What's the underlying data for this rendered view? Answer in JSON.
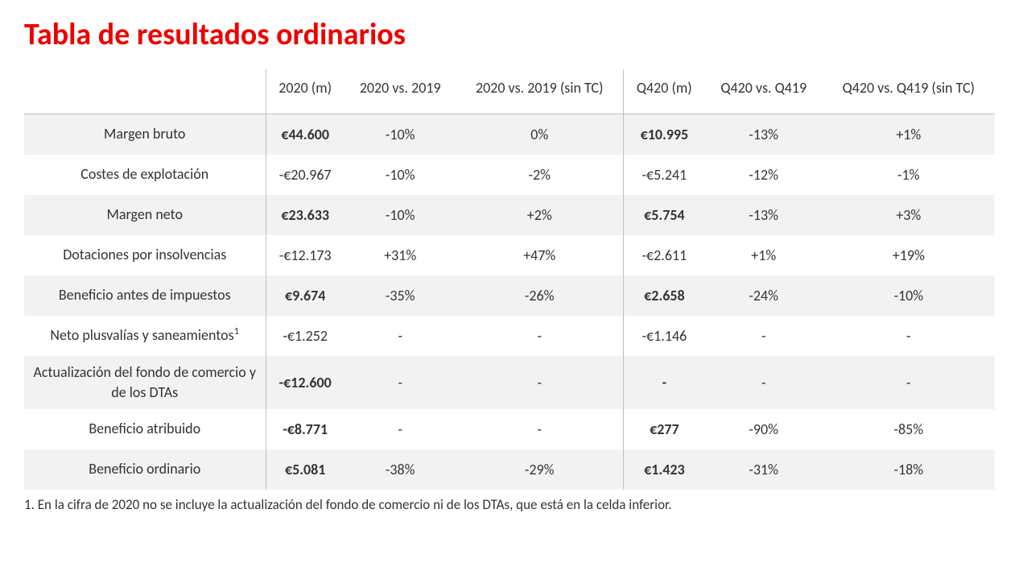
{
  "title": "Tabla de resultados ordinarios",
  "columns": {
    "c0": "2020 (m)",
    "c1": "2020 vs. 2019",
    "c2": "2020 vs. 2019 (sin TC)",
    "c3": "Q420 (m)",
    "c4": "Q420 vs. Q419",
    "c5": "Q420 vs. Q419 (sin TC)"
  },
  "rows": [
    {
      "label": "Margen bruto",
      "bold": true,
      "v": [
        "€44.600",
        "-10%",
        "0%",
        "€10.995",
        "-13%",
        "+1%"
      ]
    },
    {
      "label": "Costes de explotación",
      "bold": false,
      "v": [
        "-€20.967",
        "-10%",
        "-2%",
        "-€5.241",
        "-12%",
        "-1%"
      ]
    },
    {
      "label": "Margen neto",
      "bold": true,
      "v": [
        "€23.633",
        "-10%",
        "+2%",
        "€5.754",
        "-13%",
        "+3%"
      ]
    },
    {
      "label": "Dotaciones por insolvencias",
      "bold": false,
      "v": [
        "-€12.173",
        "+31%",
        "+47%",
        "-€2.611",
        "+1%",
        "+19%"
      ]
    },
    {
      "label": "Beneficio antes de impuestos",
      "bold": true,
      "v": [
        "€9.674",
        "-35%",
        "-26%",
        "€2.658",
        "-24%",
        "-10%"
      ]
    },
    {
      "label": "Neto plusvalías y saneamientos",
      "sup": "1",
      "bold": false,
      "v": [
        "-€1.252",
        "-",
        "-",
        "-€1.146",
        "-",
        "-"
      ]
    },
    {
      "label": "Actualización del fondo de comercio y de los DTAs",
      "bold": true,
      "v": [
        "-€12.600",
        "-",
        "-",
        "-",
        "-",
        "-"
      ]
    },
    {
      "label": "Beneficio atribuido",
      "bold": true,
      "v": [
        "-€8.771",
        "-",
        "-",
        "€277",
        "-90%",
        "-85%"
      ]
    },
    {
      "label": "Beneficio ordinario",
      "bold": true,
      "v": [
        "€5.081",
        "-38%",
        "-29%",
        "€1.423",
        "-31%",
        "-18%"
      ]
    }
  ],
  "footnote": "1. En la cifra de 2020 no se incluye la actualización del fondo de comercio ni de los DTAs, que está en la celda inferior.",
  "style": {
    "title_color": "#ec0000",
    "shade_color": "#f2f2f2",
    "border_color": "#bfbfbf",
    "text_color": "#333333",
    "background": "#ffffff",
    "title_fontsize": 38,
    "body_fontsize": 18,
    "footnote_fontsize": 17
  }
}
